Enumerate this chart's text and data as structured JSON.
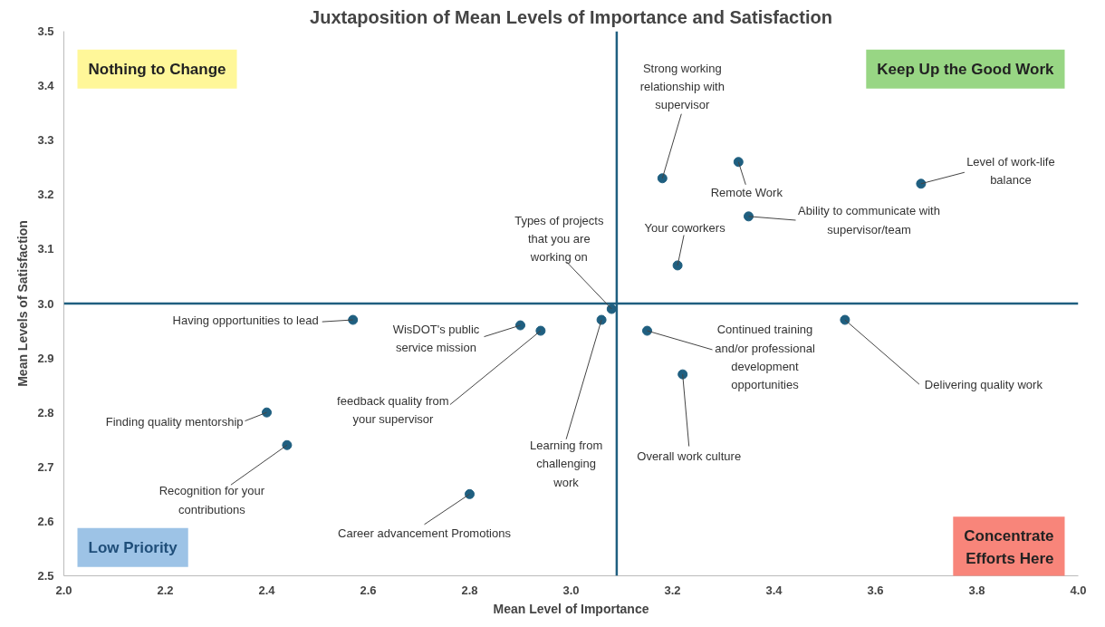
{
  "chart_data": {
    "type": "scatter",
    "title": "Juxtaposition of Mean Levels of Importance and Satisfaction",
    "xlabel": "Mean Level of Importance",
    "ylabel": "Mean Levels of Satisfaction",
    "xlim": [
      2.0,
      4.0
    ],
    "ylim": [
      2.5,
      3.5
    ],
    "xticks": [
      {
        "value": 2,
        "label": "2.0"
      },
      {
        "value": 2.2,
        "label": "2.2"
      },
      {
        "value": 2.4,
        "label": "2.4"
      },
      {
        "value": 2.6,
        "label": "2.6"
      },
      {
        "value": 2.8,
        "label": "2.8"
      },
      {
        "value": 3,
        "label": "3.0"
      },
      {
        "value": 3.2,
        "label": "3.2"
      },
      {
        "value": 3.4,
        "label": "3.4"
      },
      {
        "value": 3.6,
        "label": "3.6"
      },
      {
        "value": 3.8,
        "label": "3.8"
      },
      {
        "value": 4,
        "label": "4.0"
      }
    ],
    "yticks": [
      {
        "value": 2.5,
        "label": "2.5"
      },
      {
        "value": 2.6,
        "label": "2.6"
      },
      {
        "value": 2.7,
        "label": "2.7"
      },
      {
        "value": 2.8,
        "label": "2.8"
      },
      {
        "value": 2.9,
        "label": "2.9"
      },
      {
        "value": 3,
        "label": "3.0"
      },
      {
        "value": 3.1,
        "label": "3.1"
      },
      {
        "value": 3.2,
        "label": "3.2"
      },
      {
        "value": 3.3,
        "label": "3.3"
      },
      {
        "value": 3.4,
        "label": "3.4"
      },
      {
        "value": 3.5,
        "label": "3.5"
      }
    ],
    "grid": false,
    "marker": "circle",
    "series": [
      {
        "color": "#1f5f80",
        "x": [
          2.57,
          2.9,
          2.94,
          3.06,
          3.08,
          2.4,
          2.44,
          2.8,
          3.18,
          3.33,
          3.69,
          3.35,
          3.21,
          3.15,
          3.22,
          3.54
        ],
        "values": [
          2.97,
          2.96,
          2.95,
          2.97,
          2.99,
          2.8,
          2.74,
          2.65,
          3.23,
          3.26,
          3.22,
          3.16,
          3.07,
          2.95,
          2.87,
          2.97
        ]
      }
    ],
    "ref_lines": [
      {
        "axis": "x",
        "value": 3.09,
        "color": "#1f5f80"
      },
      {
        "axis": "y",
        "value": 3.0,
        "color": "#1f5f80"
      }
    ],
    "annotations": [
      {
        "text": "Having opportunities to lead",
        "x": 2.57,
        "y": 2.97
      },
      {
        "text": "WisDOT's public\nservice mission",
        "x": 2.9,
        "y": 2.96
      },
      {
        "text": "feedback quality from\nyour supervisor",
        "x": 2.94,
        "y": 2.95
      },
      {
        "text": "Learning from\nchallenging\nwork",
        "x": 3.06,
        "y": 2.97
      },
      {
        "text": "Types of projects\nthat you are\nworking on",
        "x": 3.08,
        "y": 2.99
      },
      {
        "text": "Finding quality mentorship",
        "x": 2.4,
        "y": 2.8
      },
      {
        "text": "Recognition for your\ncontributions",
        "x": 2.44,
        "y": 2.74
      },
      {
        "text": "Career advancement Promotions",
        "x": 2.8,
        "y": 2.65
      },
      {
        "text": "Strong working\nrelationship with\nsupervisor",
        "x": 3.18,
        "y": 3.23
      },
      {
        "text": "Remote Work",
        "x": 3.33,
        "y": 3.26
      },
      {
        "text": "Level of work-life\nbalance",
        "x": 3.69,
        "y": 3.22
      },
      {
        "text": "Ability to communicate with\nsupervisor/team",
        "x": 3.35,
        "y": 3.16
      },
      {
        "text": "Your coworkers",
        "x": 3.21,
        "y": 3.07
      },
      {
        "text": "Continued training\nand/or professional\ndevelopment\nopportunities",
        "x": 3.15,
        "y": 2.95
      },
      {
        "text": "Overall work culture",
        "x": 3.22,
        "y": 2.87
      },
      {
        "text": "Delivering quality work",
        "x": 3.54,
        "y": 2.97
      },
      "Nothing to Change",
      "Keep Up the Good Work",
      "Concentrate\nEfforts Here",
      "Low Priority"
    ]
  }
}
